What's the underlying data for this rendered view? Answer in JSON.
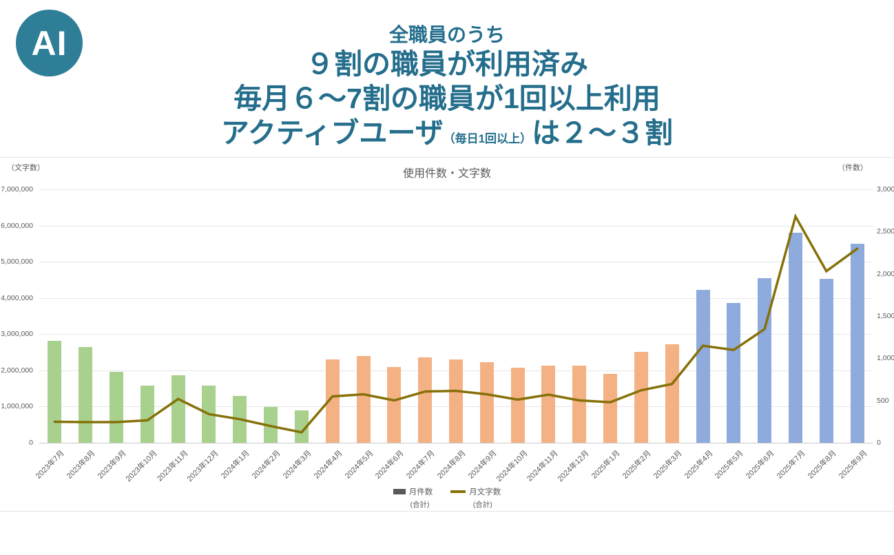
{
  "logo": {
    "text": "AI",
    "circle_color": "#2e7e98",
    "text_color": "#ffffff"
  },
  "header": {
    "text_color": "#246e8c",
    "line1": "全職員のうち",
    "line2": "９割の職員が利用済み",
    "line3": "毎月６～7割の職員が1回以上利用",
    "line4_pre": "アクティブユーザ",
    "line4_paren": "（毎日1回以上）",
    "line4_post": "は２～３割"
  },
  "chart": {
    "title": "使用件数・文字数",
    "left_axis_unit": "（文字数）",
    "right_axis_unit": "（件数）"
  },
  "chart_data": {
    "type": "bar+line combo",
    "title": "使用件数・文字数",
    "grid": true,
    "legend_position": "bottom",
    "categories": [
      "2023年7月",
      "2023年8月",
      "2023年9月",
      "2023年10月",
      "2023年11月",
      "2023年12月",
      "2024年1月",
      "2024年2月",
      "2024年3月",
      "2024年4月",
      "2024年5月",
      "2024年6月",
      "2024年7月",
      "2024年8月",
      "2024年9月",
      "2024年10月",
      "2024年11月",
      "2024年12月",
      "2025年1月",
      "2025年2月",
      "2025年3月",
      "2025年4月",
      "2025年5月",
      "2025年6月",
      "2025年7月",
      "2025年8月",
      "2025年9月"
    ],
    "left_axis": {
      "unit": "（文字数）",
      "min": 0,
      "max": 7000000,
      "step": 1000000
    },
    "right_axis": {
      "unit": "（件数）",
      "min": 0,
      "max": 3000,
      "step": 500
    },
    "series": [
      {
        "name": "月件数",
        "subtitle": "(合計)",
        "type": "bar",
        "axis": "right",
        "legend_swatch": "#595959",
        "values": [
          1205,
          1130,
          840,
          680,
          795,
          680,
          555,
          425,
          380,
          985,
          1030,
          895,
          1015,
          990,
          955,
          885,
          915,
          915,
          815,
          1075,
          1165,
          1810,
          1655,
          1950,
          2485,
          1940,
          2355
        ],
        "point_colors": [
          "#a9d18e",
          "#a9d18e",
          "#a9d18e",
          "#a9d18e",
          "#a9d18e",
          "#a9d18e",
          "#a9d18e",
          "#a9d18e",
          "#a9d18e",
          "#f4b183",
          "#f4b183",
          "#f4b183",
          "#f4b183",
          "#f4b183",
          "#f4b183",
          "#f4b183",
          "#f4b183",
          "#f4b183",
          "#f4b183",
          "#f4b183",
          "#f4b183",
          "#8faadc",
          "#8faadc",
          "#8faadc",
          "#8faadc",
          "#8faadc",
          "#8faadc"
        ]
      },
      {
        "name": "月文字数",
        "subtitle": "(合計)",
        "type": "line",
        "axis": "left",
        "color": "#867109",
        "values": [
          580000,
          570000,
          570000,
          620000,
          1210000,
          790000,
          650000,
          460000,
          290000,
          1280000,
          1340000,
          1170000,
          1415000,
          1435000,
          1340000,
          1190000,
          1330000,
          1170000,
          1120000,
          1450000,
          1625000,
          2680000,
          2565000,
          3140000,
          6250000,
          4740000,
          5360000
        ]
      }
    ]
  }
}
